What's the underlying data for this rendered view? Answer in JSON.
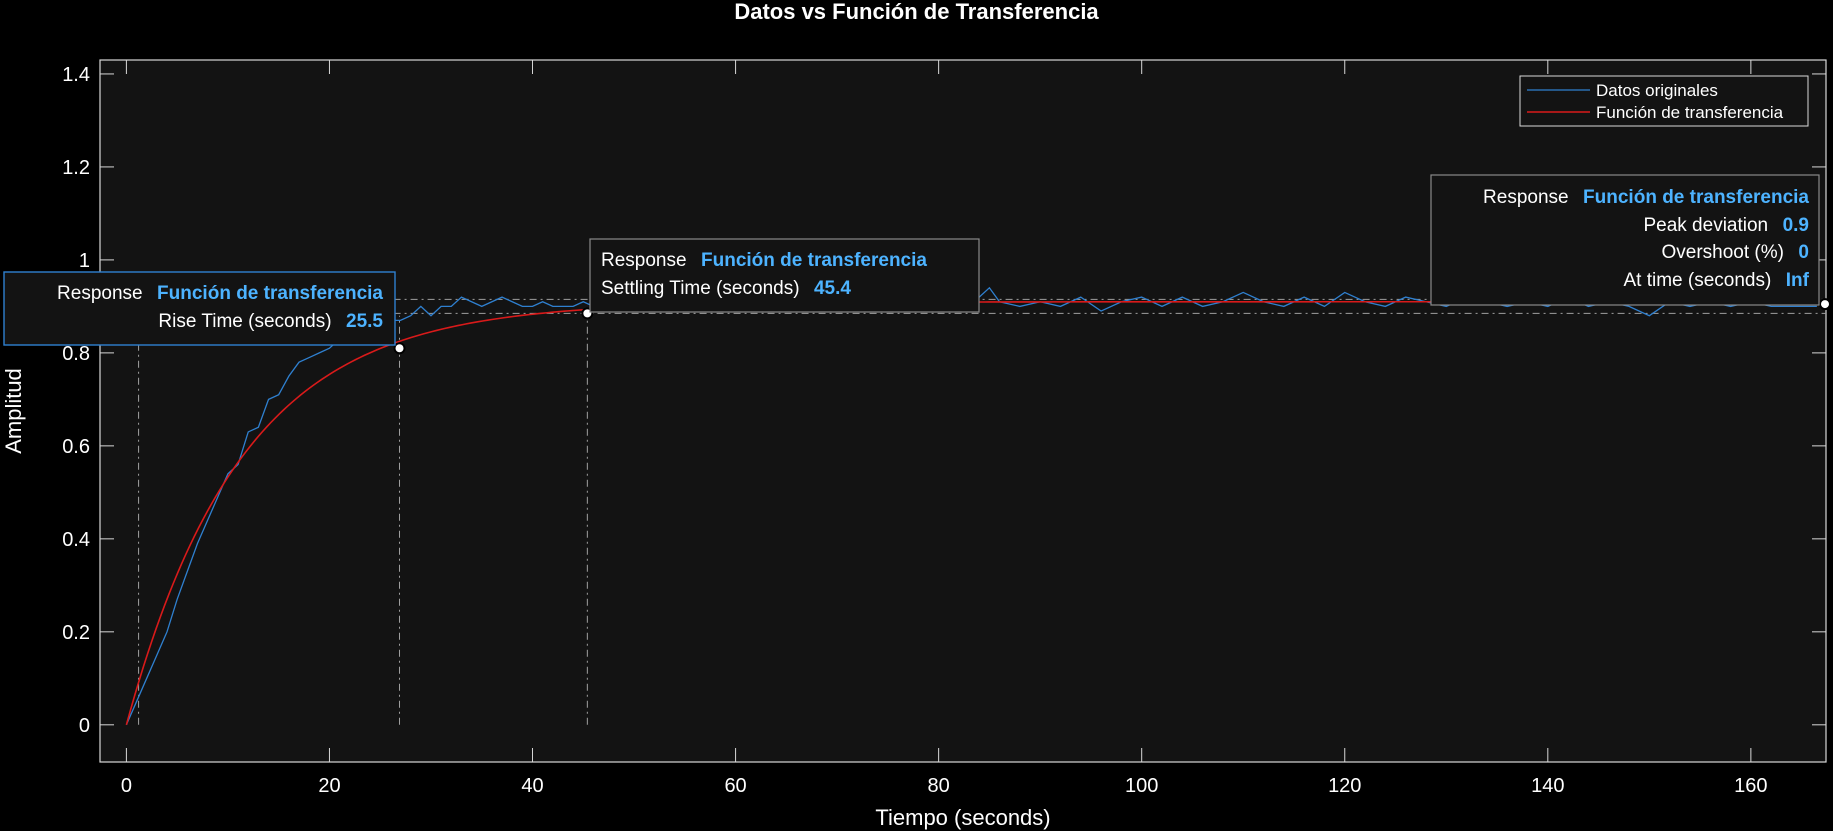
{
  "chart_data": {
    "type": "line",
    "title": "Datos vs Función de Transferencia",
    "xlabel": "Tiempo (seconds)",
    "ylabel": "Amplitud",
    "xlim": [
      -2.6,
      167.4
    ],
    "ylim": [
      -0.08,
      1.43
    ],
    "x_ticks": [
      "0",
      "20",
      "40",
      "60",
      "80",
      "100",
      "120",
      "140",
      "160"
    ],
    "y_ticks": [
      "0",
      "0.2",
      "0.4",
      "0.6",
      "0.8",
      "1",
      "1.2",
      "1.4"
    ],
    "grid": false,
    "legend_position": "top-right",
    "colors": {
      "datos": "#2f80d0",
      "tf": "#d91a1a",
      "accent": "#4db3ff",
      "axes_bg": "#131313",
      "page_bg": "#000000"
    },
    "series": [
      {
        "name": "Datos originales",
        "x": [
          0,
          1,
          2,
          3,
          4,
          5,
          6,
          7,
          8,
          9,
          10,
          11,
          12,
          13,
          14,
          15,
          16,
          17,
          18,
          19,
          20,
          21,
          22,
          23,
          24,
          25,
          26,
          27,
          28,
          29,
          30,
          31,
          32,
          33,
          34,
          35,
          36,
          37,
          38,
          39,
          40,
          41,
          42,
          43,
          44,
          45,
          46,
          47,
          48,
          49,
          50,
          52,
          54,
          56,
          58,
          60,
          62,
          64,
          66,
          68,
          70,
          72,
          74,
          76,
          78,
          80,
          82,
          84,
          85,
          86,
          88,
          90,
          92,
          94,
          96,
          98,
          100,
          102,
          104,
          106,
          108,
          110,
          112,
          114,
          116,
          118,
          120,
          122,
          124,
          126,
          128,
          130,
          132,
          134,
          136,
          138,
          140,
          142,
          144,
          146,
          148,
          150,
          152,
          154,
          156,
          158,
          160,
          162,
          164,
          166.5
        ],
        "y": [
          0,
          0.05,
          0.1,
          0.15,
          0.2,
          0.27,
          0.33,
          0.39,
          0.44,
          0.49,
          0.54,
          0.56,
          0.63,
          0.64,
          0.7,
          0.71,
          0.75,
          0.78,
          0.79,
          0.8,
          0.81,
          0.83,
          0.84,
          0.85,
          0.86,
          0.86,
          0.87,
          0.87,
          0.88,
          0.9,
          0.88,
          0.9,
          0.9,
          0.92,
          0.91,
          0.9,
          0.91,
          0.92,
          0.91,
          0.9,
          0.9,
          0.91,
          0.9,
          0.9,
          0.9,
          0.91,
          0.9,
          0.9,
          0.9,
          0.9,
          0.9,
          0.91,
          0.9,
          0.92,
          0.9,
          0.91,
          0.89,
          0.9,
          0.9,
          0.91,
          0.9,
          0.91,
          0.9,
          0.92,
          0.9,
          0.91,
          0.9,
          0.92,
          0.94,
          0.91,
          0.9,
          0.91,
          0.9,
          0.92,
          0.89,
          0.91,
          0.92,
          0.9,
          0.92,
          0.9,
          0.91,
          0.93,
          0.91,
          0.9,
          0.92,
          0.9,
          0.93,
          0.91,
          0.9,
          0.92,
          0.91,
          0.9,
          0.92,
          0.91,
          0.9,
          0.91,
          0.9,
          0.92,
          0.9,
          0.91,
          0.9,
          0.88,
          0.91,
          0.9,
          0.91,
          0.9,
          0.91,
          0.9,
          0.9,
          0.9
        ]
      },
      {
        "name": "Función de transferencia",
        "gain": 0.91,
        "time_constant": 11.35,
        "x_range": [
          0,
          167.4
        ]
      }
    ],
    "markers": [
      {
        "x": 26.9,
        "y": 0.81
      },
      {
        "x": 45.4,
        "y": 0.885
      },
      {
        "x": 167.4,
        "y": 0.905
      }
    ],
    "reference_lines": {
      "vertical": [
        1.2,
        26.9,
        45.4
      ],
      "horizontal": [
        0.885,
        0.915
      ]
    }
  },
  "tooltips": {
    "rise": {
      "response_label": "Response",
      "system_name": "Función de transferencia",
      "metric_label": "Rise Time (seconds)",
      "metric_value": "25.5"
    },
    "settling": {
      "response_label": "Response",
      "system_name": "Función de transferencia",
      "metric_label": "Settling Time (seconds)",
      "metric_value": "45.4"
    },
    "peak": {
      "response_label": "Response",
      "system_name": "Función de transferencia",
      "peak_label": "Peak deviation",
      "peak_value": "0.9",
      "overshoot_label": "Overshoot (%)",
      "overshoot_value": "0",
      "at_time_label": "At time (seconds)",
      "at_time_value": "Inf"
    }
  }
}
